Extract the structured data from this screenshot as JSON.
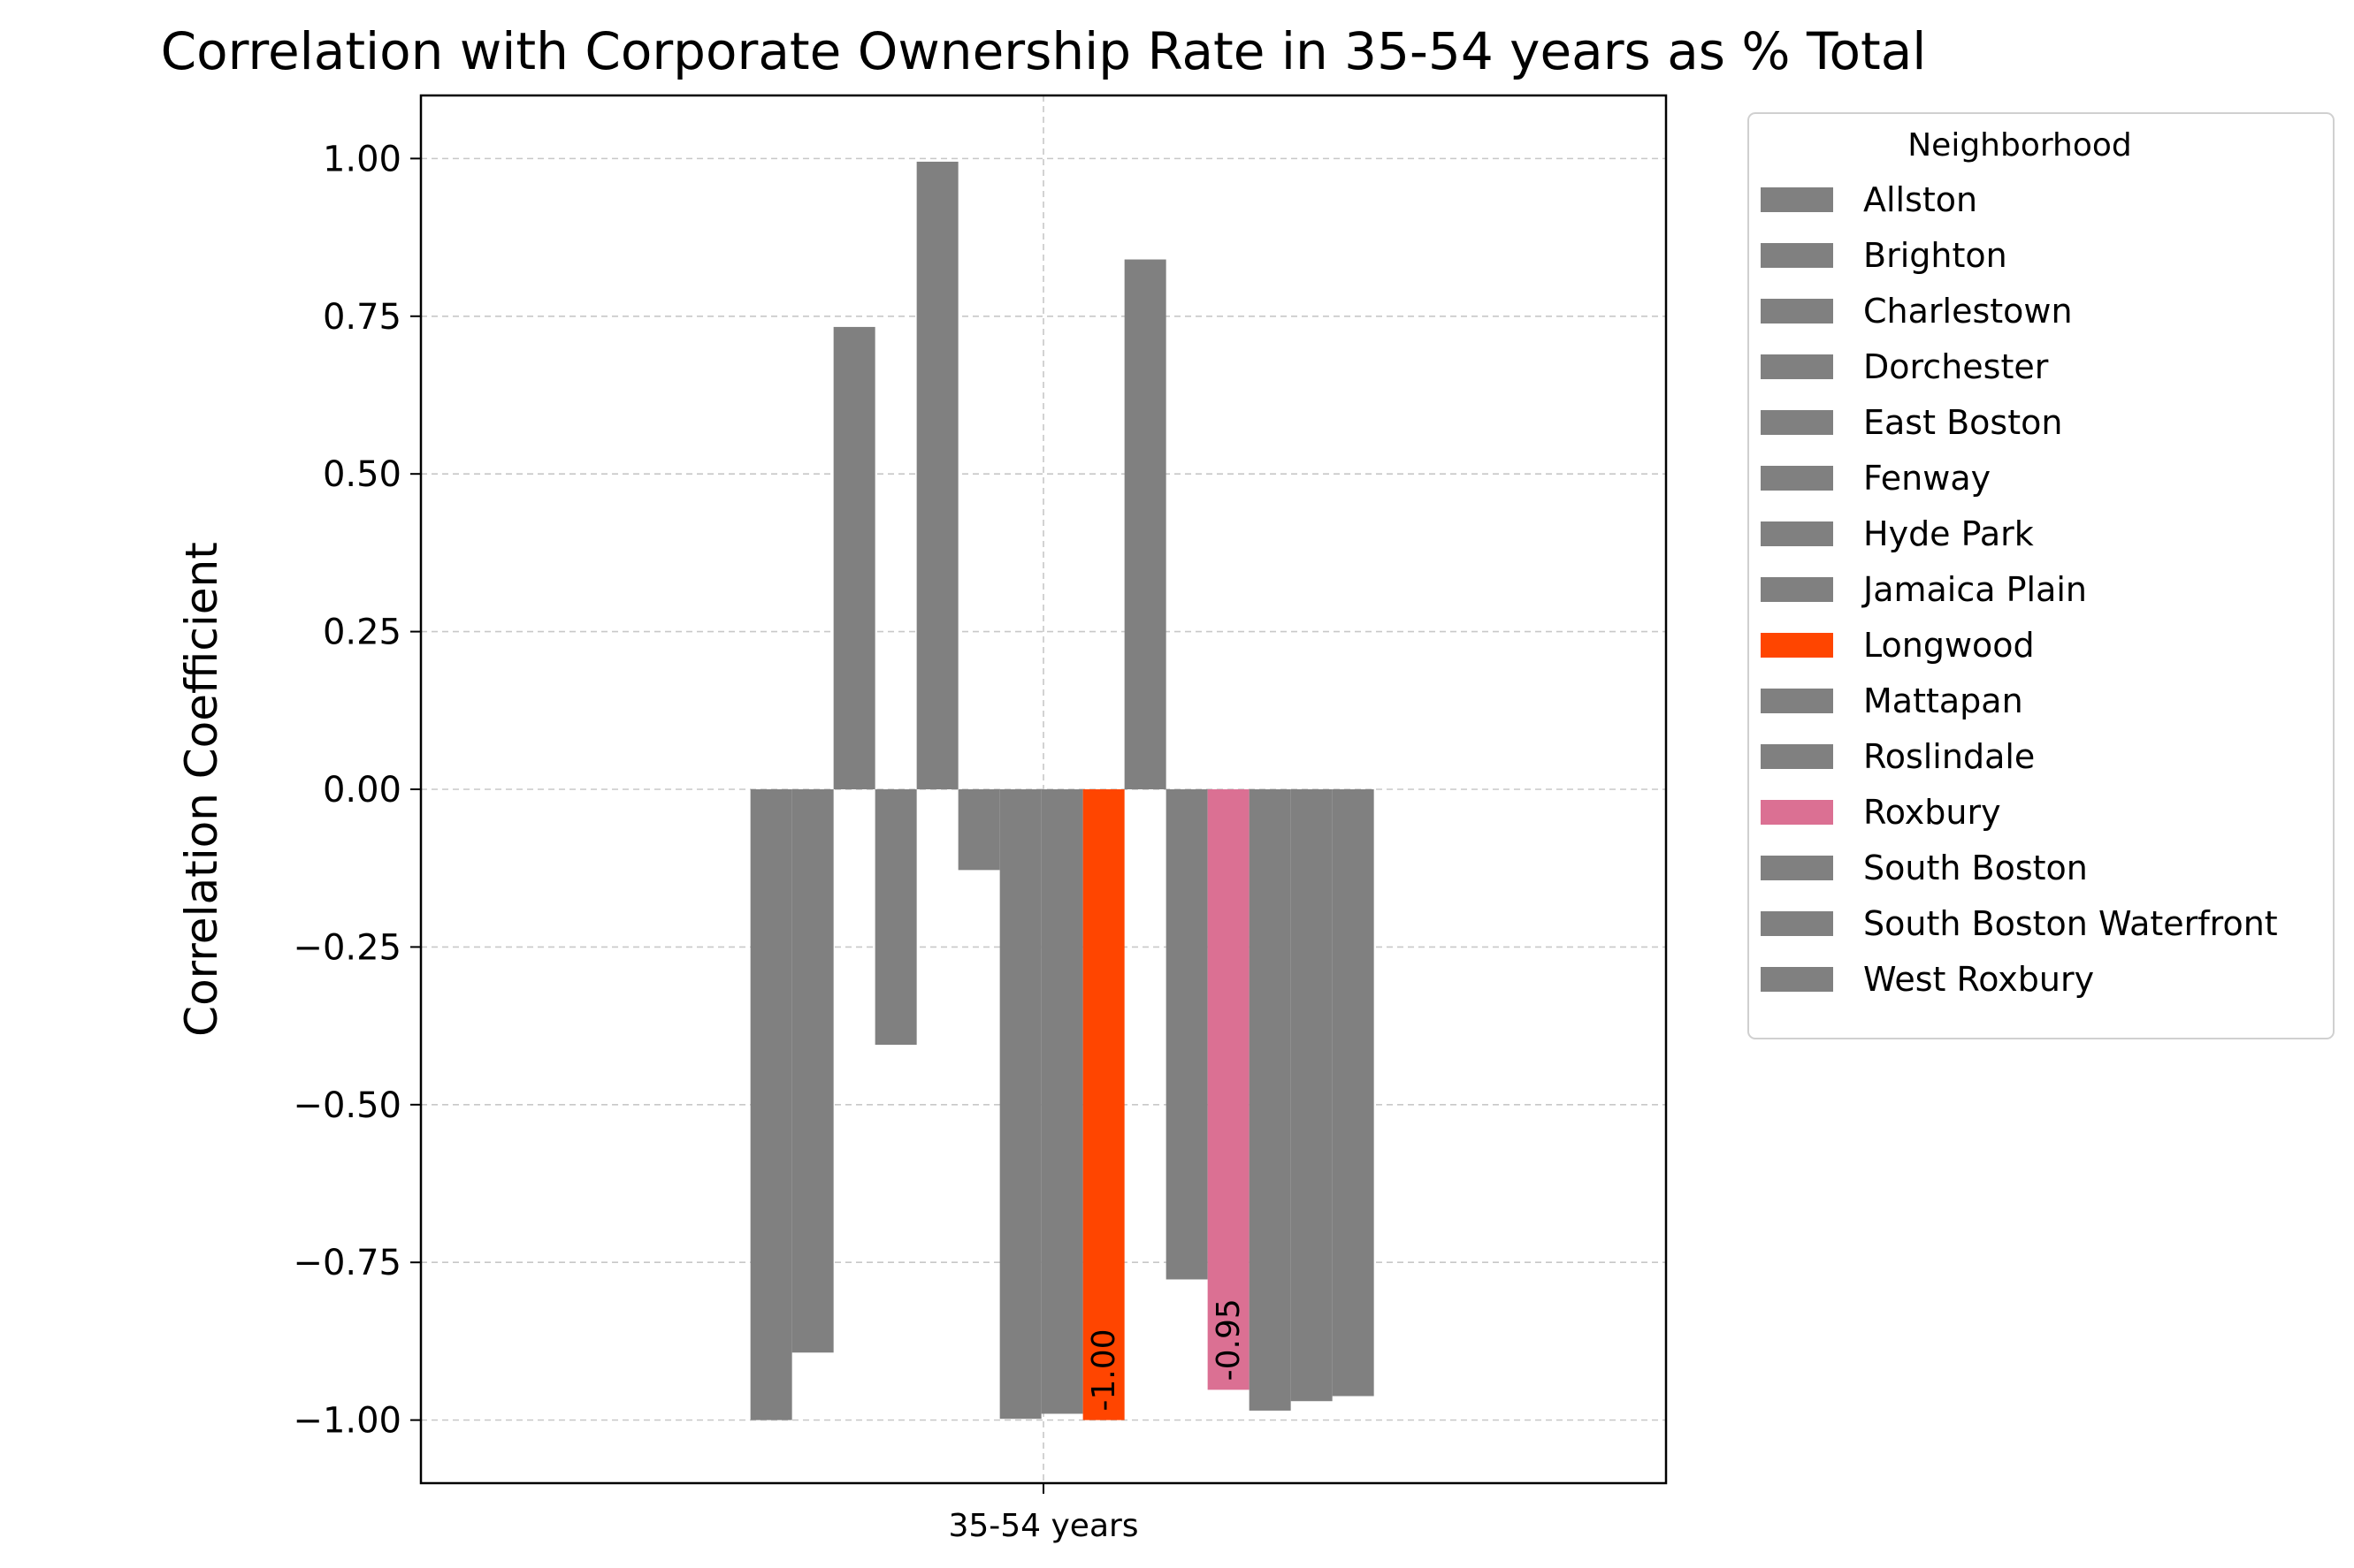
{
  "chart_data": {
    "type": "bar",
    "title": "Correlation with Corporate Ownership Rate in 35-54 years as % Total",
    "xlabel": "",
    "ylabel": "Correlation Coefficient",
    "categories": [
      "35-54 years"
    ],
    "ylim": [
      -1.1,
      1.1
    ],
    "yticks": [
      1.0,
      0.75,
      0.5,
      0.25,
      0.0,
      -0.25,
      -0.5,
      -0.75,
      -1.0
    ],
    "ytick_labels": [
      "1.00",
      "0.75",
      "0.50",
      "0.25",
      "0.00",
      "−0.25",
      "−0.50",
      "−0.75",
      "−1.00"
    ],
    "grid": true,
    "legend_title": "Neighborhood",
    "legend_placement": "outside-right",
    "series": [
      {
        "name": "Allston",
        "values": [
          -1.0
        ],
        "color": "#808080"
      },
      {
        "name": "Brighton",
        "values": [
          -0.893
        ],
        "color": "#808080"
      },
      {
        "name": "Charlestown",
        "values": [
          0.733
        ],
        "color": "#808080"
      },
      {
        "name": "Dorchester",
        "values": [
          -0.405
        ],
        "color": "#808080"
      },
      {
        "name": "East Boston",
        "values": [
          0.995
        ],
        "color": "#808080"
      },
      {
        "name": "Fenway",
        "values": [
          -0.128
        ],
        "color": "#808080"
      },
      {
        "name": "Hyde Park",
        "values": [
          -0.998
        ],
        "color": "#808080"
      },
      {
        "name": "Jamaica Plain",
        "values": [
          -0.99
        ],
        "color": "#808080"
      },
      {
        "name": "Longwood",
        "values": [
          -1.0
        ],
        "color": "#ff4500",
        "label": "-1.00"
      },
      {
        "name": "Mattapan",
        "values": [
          0.84
        ],
        "color": "#808080"
      },
      {
        "name": "Roslindale",
        "values": [
          -0.777
        ],
        "color": "#808080"
      },
      {
        "name": "Roxbury",
        "values": [
          -0.952
        ],
        "color": "#db7093",
        "label": "-0.95"
      },
      {
        "name": "South Boston",
        "values": [
          -0.985
        ],
        "color": "#808080"
      },
      {
        "name": "South Boston Waterfront",
        "values": [
          -0.97
        ],
        "color": "#808080"
      },
      {
        "name": "West Roxbury",
        "values": [
          -0.962
        ],
        "color": "#808080"
      }
    ]
  }
}
